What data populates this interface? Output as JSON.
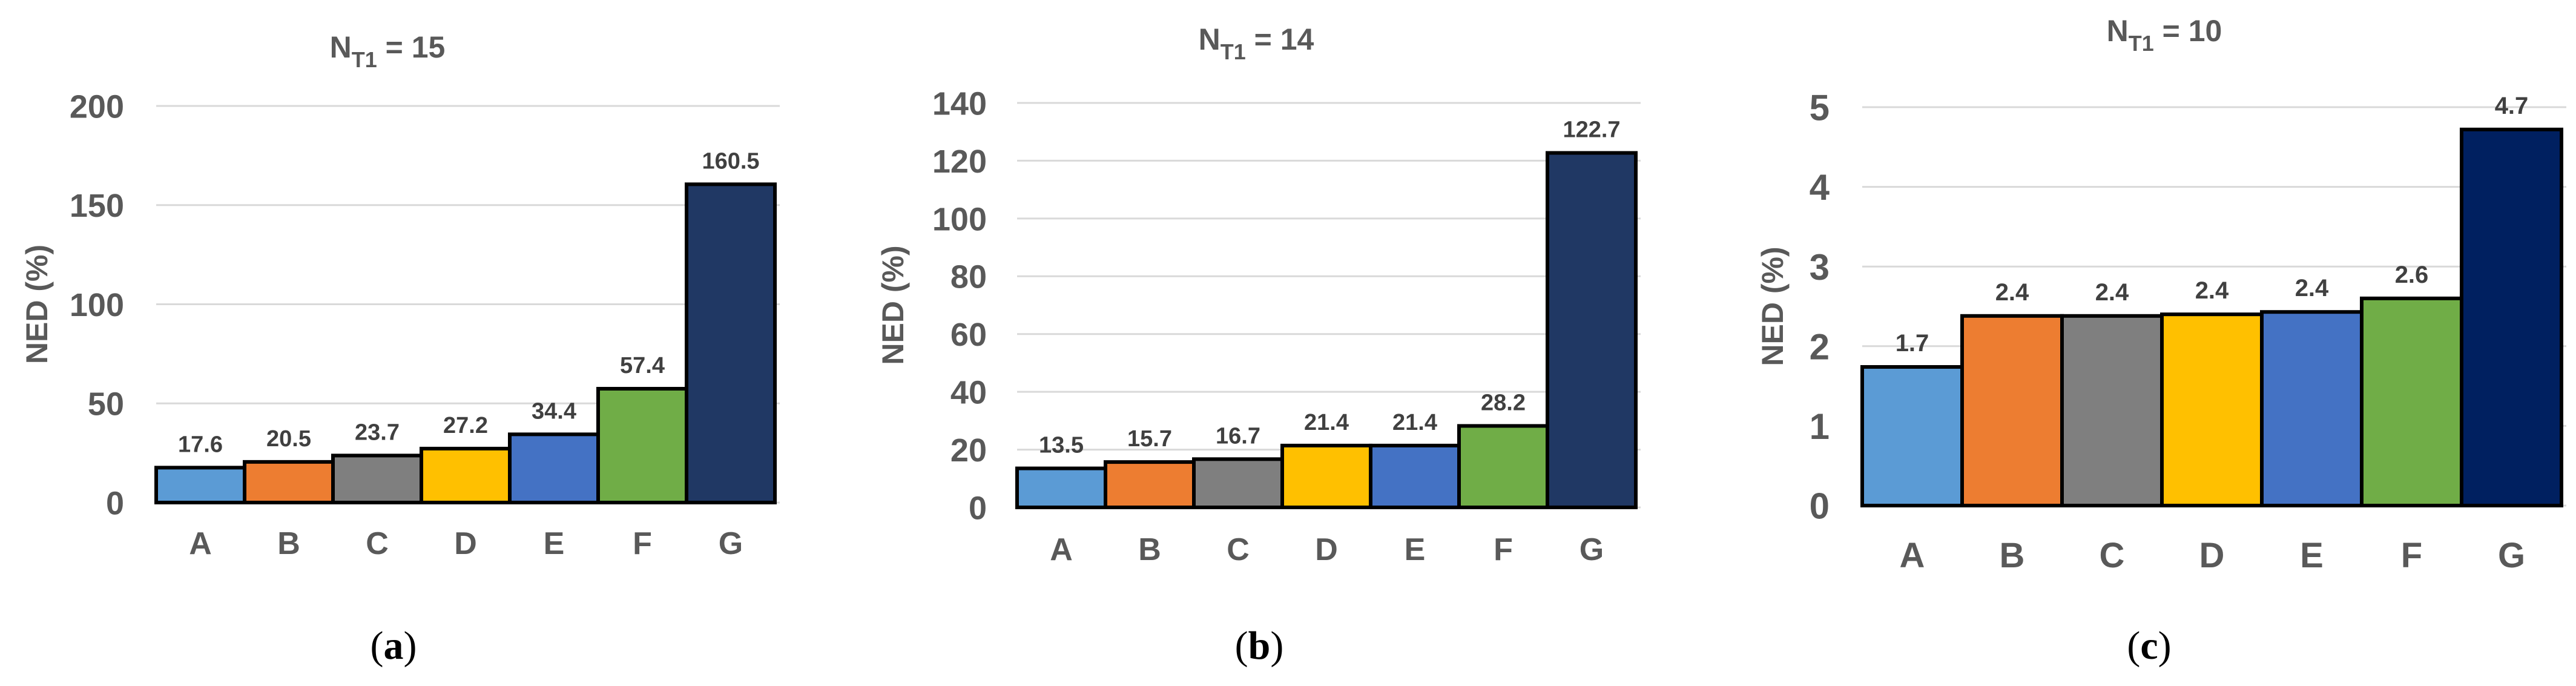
{
  "chart_data": [
    {
      "type": "bar",
      "title_main": "N",
      "title_sub": "T1",
      "title_rest": " = 15",
      "ylabel": "NED (%)",
      "ylim": [
        0,
        200
      ],
      "yticks": [
        0,
        50,
        100,
        150,
        200
      ],
      "categories": [
        "A",
        "B",
        "C",
        "D",
        "E",
        "F",
        "G"
      ],
      "values": [
        17.6,
        20.5,
        23.7,
        27.2,
        34.4,
        57.4,
        160.5
      ],
      "value_labels": [
        "17.6",
        "20.5",
        "23.7",
        "27.2",
        "34.4",
        "57.4",
        "160.5"
      ],
      "colors": [
        "#5b9bd5",
        "#ed7d31",
        "#7f7f7f",
        "#ffc000",
        "#4472c4",
        "#70ad47",
        "#203864"
      ],
      "panel_label": "a"
    },
    {
      "type": "bar",
      "title_main": "N",
      "title_sub": "T1",
      "title_rest": " = 14",
      "ylabel": "NED (%)",
      "ylim": [
        0,
        140
      ],
      "yticks": [
        0,
        20,
        40,
        60,
        80,
        100,
        120,
        140
      ],
      "categories": [
        "A",
        "B",
        "C",
        "D",
        "E",
        "F",
        "G"
      ],
      "values": [
        13.5,
        15.7,
        16.7,
        21.4,
        21.4,
        28.2,
        122.7
      ],
      "value_labels": [
        "13.5",
        "15.7",
        "16.7",
        "21.4",
        "21.4",
        "28.2",
        "122.7"
      ],
      "colors": [
        "#5b9bd5",
        "#ed7d31",
        "#7f7f7f",
        "#ffc000",
        "#4472c4",
        "#70ad47",
        "#203864"
      ],
      "panel_label": "b"
    },
    {
      "type": "bar",
      "title_main": "N",
      "title_sub": "T1",
      "title_rest": " = 10",
      "ylabel": "NED (%)",
      "ylim": [
        0,
        5
      ],
      "yticks": [
        0,
        1,
        2,
        3,
        4,
        5
      ],
      "categories": [
        "A",
        "B",
        "C",
        "D",
        "E",
        "F",
        "G"
      ],
      "values": [
        1.74,
        2.38,
        2.38,
        2.4,
        2.43,
        2.6,
        4.72
      ],
      "value_labels": [
        "1.7",
        "2.4",
        "2.4",
        "2.4",
        "2.4",
        "2.6",
        "4.7"
      ],
      "colors": [
        "#5b9bd5",
        "#ed7d31",
        "#7f7f7f",
        "#ffc000",
        "#4472c4",
        "#70ad47",
        "#002060"
      ],
      "panel_label": "c"
    }
  ]
}
